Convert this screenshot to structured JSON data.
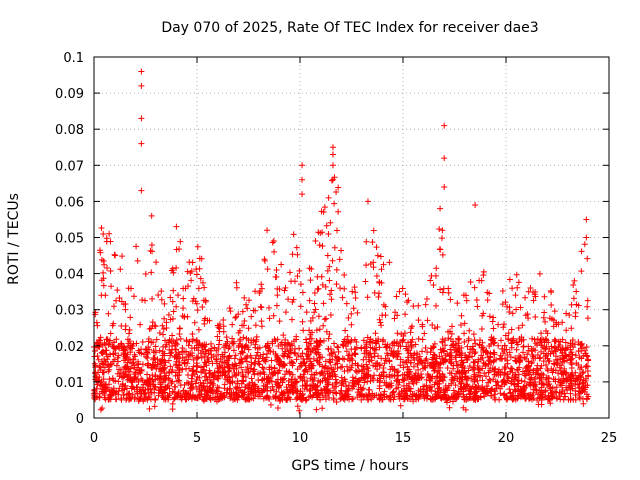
{
  "chart_data": {
    "type": "scatter",
    "title": "Day 070 of 2025, Rate Of TEC Index for receiver dae3",
    "xlabel": "GPS time / hours",
    "ylabel": "ROTI / TECUs",
    "xlim": [
      0,
      25
    ],
    "ylim": [
      0,
      0.1
    ],
    "x_ticks": [
      "0",
      "5",
      "10",
      "15",
      "20",
      "25"
    ],
    "y_ticks": [
      "0",
      "0.01",
      "0.02",
      "0.03",
      "0.04",
      "0.05",
      "0.06",
      "0.07",
      "0.08",
      "0.09",
      "0.1"
    ],
    "grid": true,
    "marker": "plus",
    "series_color": "#ff0000",
    "x_data_range": [
      0,
      24
    ],
    "typical_band": [
      0.005,
      0.03
    ],
    "highlighted_points": [
      {
        "x": 2.3,
        "y": 0.096
      },
      {
        "x": 2.3,
        "y": 0.092
      },
      {
        "x": 2.3,
        "y": 0.083
      },
      {
        "x": 2.3,
        "y": 0.076
      },
      {
        "x": 2.3,
        "y": 0.063
      },
      {
        "x": 2.8,
        "y": 0.056
      },
      {
        "x": 4.0,
        "y": 0.053
      },
      {
        "x": 10.1,
        "y": 0.07
      },
      {
        "x": 10.1,
        "y": 0.066
      },
      {
        "x": 10.1,
        "y": 0.062
      },
      {
        "x": 11.6,
        "y": 0.075
      },
      {
        "x": 11.6,
        "y": 0.073
      },
      {
        "x": 11.6,
        "y": 0.07
      },
      {
        "x": 11.6,
        "y": 0.066
      },
      {
        "x": 13.3,
        "y": 0.06
      },
      {
        "x": 17.0,
        "y": 0.081
      },
      {
        "x": 17.0,
        "y": 0.072
      },
      {
        "x": 17.0,
        "y": 0.064
      },
      {
        "x": 16.8,
        "y": 0.058
      },
      {
        "x": 18.5,
        "y": 0.059
      },
      {
        "x": 23.9,
        "y": 0.055
      },
      {
        "x": 23.9,
        "y": 0.05
      },
      {
        "x": 8.4,
        "y": 0.052
      }
    ]
  }
}
